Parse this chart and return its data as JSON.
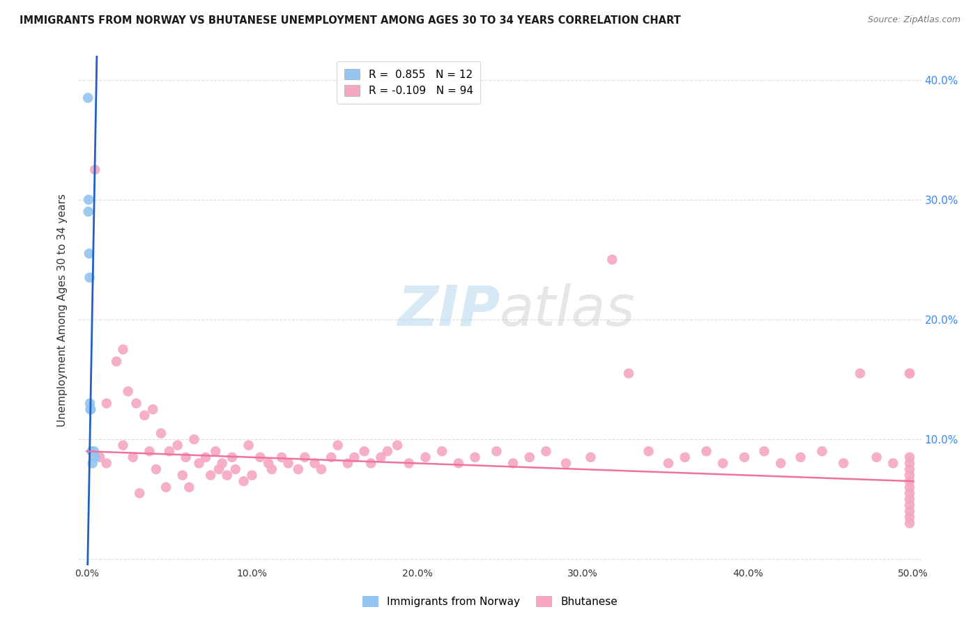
{
  "title": "IMMIGRANTS FROM NORWAY VS BHUTANESE UNEMPLOYMENT AMONG AGES 30 TO 34 YEARS CORRELATION CHART",
  "source": "Source: ZipAtlas.com",
  "ylabel": "Unemployment Among Ages 30 to 34 years",
  "xlim": [
    0.0,
    0.5
  ],
  "ylim": [
    -0.005,
    0.42
  ],
  "yticks": [
    0.0,
    0.1,
    0.2,
    0.3,
    0.4
  ],
  "ytick_labels_right": [
    "",
    "10.0%",
    "20.0%",
    "30.0%",
    "40.0%"
  ],
  "xticks": [
    0.0,
    0.1,
    0.2,
    0.3,
    0.4,
    0.5
  ],
  "xtick_labels": [
    "0.0%",
    "10.0%",
    "20.0%",
    "30.0%",
    "40.0%",
    "50.0%"
  ],
  "norway_R": 0.855,
  "norway_N": 12,
  "bhutan_R": -0.109,
  "bhutan_N": 94,
  "norway_color": "#92c5f0",
  "bhutan_color": "#f5a8c0",
  "norway_line_color": "#2060c0",
  "bhutan_line_color": "#f070a0",
  "background_color": "#ffffff",
  "grid_color": "#dddddd",
  "norway_x": [
    0.0008,
    0.001,
    0.0012,
    0.0015,
    0.0018,
    0.002,
    0.0022,
    0.0025,
    0.003,
    0.0035,
    0.0045,
    0.0052
  ],
  "norway_y": [
    0.385,
    0.29,
    0.3,
    0.255,
    0.235,
    0.13,
    0.125,
    0.125,
    0.09,
    0.08,
    0.09,
    0.085
  ],
  "bhutan_x": [
    0.005,
    0.008,
    0.012,
    0.012,
    0.018,
    0.022,
    0.022,
    0.025,
    0.028,
    0.03,
    0.032,
    0.035,
    0.038,
    0.04,
    0.042,
    0.045,
    0.048,
    0.05,
    0.055,
    0.058,
    0.06,
    0.062,
    0.065,
    0.068,
    0.072,
    0.075,
    0.078,
    0.08,
    0.082,
    0.085,
    0.088,
    0.09,
    0.095,
    0.098,
    0.1,
    0.105,
    0.11,
    0.112,
    0.118,
    0.122,
    0.128,
    0.132,
    0.138,
    0.142,
    0.148,
    0.152,
    0.158,
    0.162,
    0.168,
    0.172,
    0.178,
    0.182,
    0.188,
    0.195,
    0.205,
    0.215,
    0.225,
    0.235,
    0.248,
    0.258,
    0.268,
    0.278,
    0.29,
    0.305,
    0.318,
    0.328,
    0.34,
    0.352,
    0.362,
    0.375,
    0.385,
    0.398,
    0.41,
    0.42,
    0.432,
    0.445,
    0.458,
    0.468,
    0.478,
    0.488,
    0.498,
    0.498,
    0.498,
    0.498,
    0.498,
    0.498,
    0.498,
    0.498,
    0.498,
    0.498,
    0.498,
    0.498,
    0.498,
    0.498
  ],
  "bhutan_y": [
    0.325,
    0.085,
    0.13,
    0.08,
    0.165,
    0.175,
    0.095,
    0.14,
    0.085,
    0.13,
    0.055,
    0.12,
    0.09,
    0.125,
    0.075,
    0.105,
    0.06,
    0.09,
    0.095,
    0.07,
    0.085,
    0.06,
    0.1,
    0.08,
    0.085,
    0.07,
    0.09,
    0.075,
    0.08,
    0.07,
    0.085,
    0.075,
    0.065,
    0.095,
    0.07,
    0.085,
    0.08,
    0.075,
    0.085,
    0.08,
    0.075,
    0.085,
    0.08,
    0.075,
    0.085,
    0.095,
    0.08,
    0.085,
    0.09,
    0.08,
    0.085,
    0.09,
    0.095,
    0.08,
    0.085,
    0.09,
    0.08,
    0.085,
    0.09,
    0.08,
    0.085,
    0.09,
    0.08,
    0.085,
    0.25,
    0.155,
    0.09,
    0.08,
    0.085,
    0.09,
    0.08,
    0.085,
    0.09,
    0.08,
    0.085,
    0.09,
    0.08,
    0.155,
    0.085,
    0.08,
    0.155,
    0.155,
    0.085,
    0.08,
    0.075,
    0.07,
    0.065,
    0.06,
    0.055,
    0.05,
    0.045,
    0.04,
    0.035,
    0.03
  ]
}
